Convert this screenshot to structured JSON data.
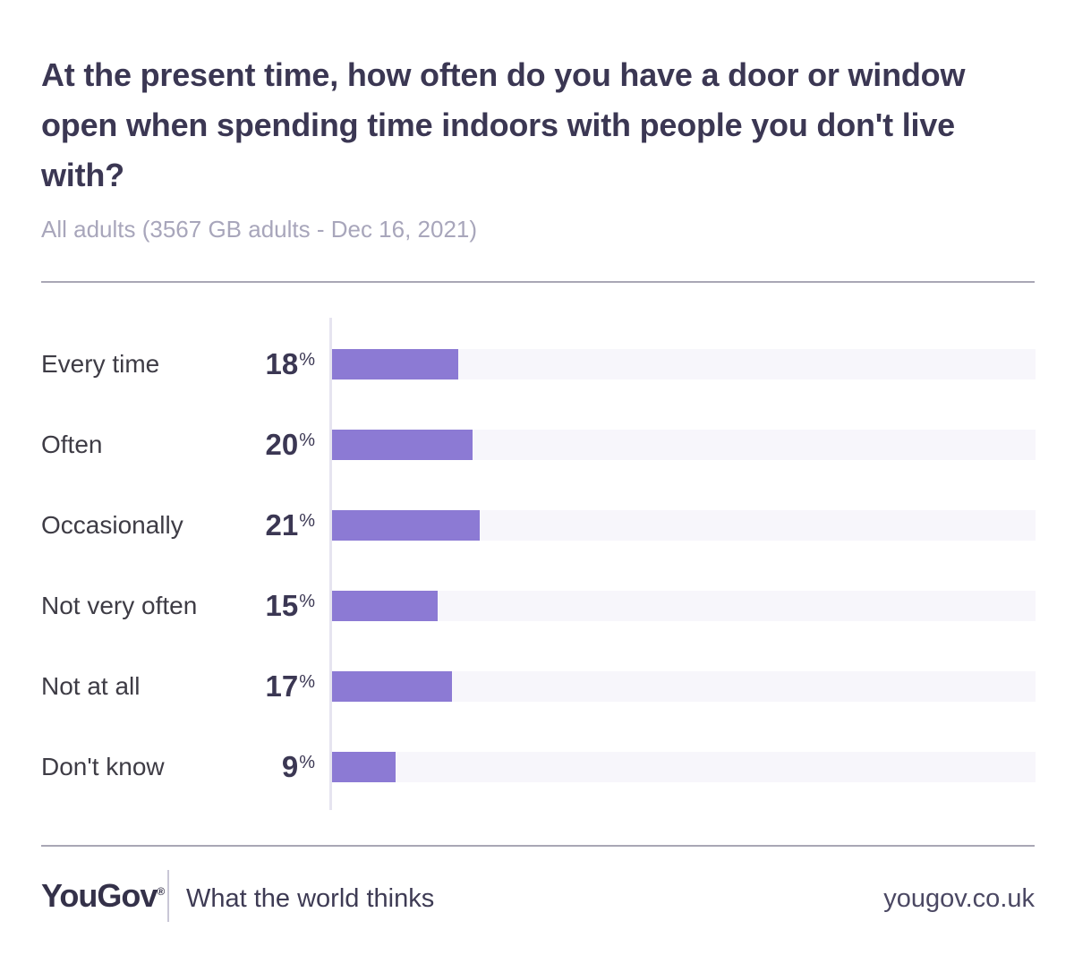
{
  "chart_data": {
    "type": "bar",
    "orientation": "horizontal",
    "title": "At the present time, how often do you have a door or window open when spending time indoors with people you don't live with?",
    "subtitle": "All adults (3567 GB adults - Dec 16, 2021)",
    "categories": [
      "Every time",
      "Often",
      "Occasionally",
      "Not very often",
      "Not at all",
      "Don't know"
    ],
    "values": [
      18,
      20,
      21,
      15,
      17,
      9
    ],
    "unit": "%",
    "xlim": [
      0,
      100
    ],
    "grid": false,
    "legend": false,
    "bar_color": "#8C7AD4",
    "track_color": "#F7F6FB"
  },
  "footer": {
    "logo": "YouGov",
    "registered_mark": "®",
    "tagline": "What the world thinks",
    "website": "yougov.co.uk"
  },
  "colors": {
    "title_text": "#3B3753",
    "subtitle_text": "#A8A6BB",
    "category_text": "#3E3C45",
    "value_text": "#3B3753",
    "bar": "#8C7AD4",
    "bar_track": "#F7F6FB",
    "axis_line": "#E6E4F0",
    "divider_rule": "#A9A7B5"
  }
}
